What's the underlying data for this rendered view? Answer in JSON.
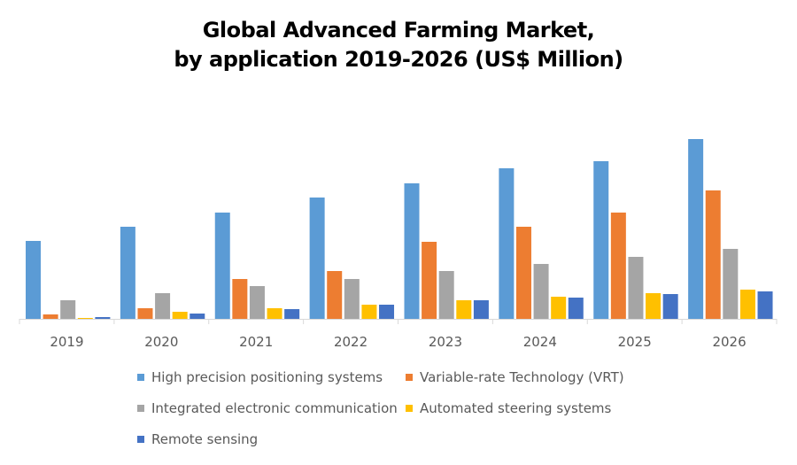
{
  "chart_data": {
    "type": "bar",
    "title_line1": "Global Advanced Farming Market,",
    "title_line2": "by application 2019-2026 (US$ Million)",
    "xlabel": "",
    "ylabel": "",
    "categories": [
      "2019",
      "2020",
      "2021",
      "2022",
      "2023",
      "2024",
      "2025",
      "2026"
    ],
    "ylim": [
      0,
      210
    ],
    "grid": false,
    "legend_position": "bottom",
    "series": [
      {
        "name": "High precision positioning systems",
        "color": "#5B9BD5",
        "values": [
          88,
          104,
          120,
          137,
          153,
          170,
          178,
          203
        ]
      },
      {
        "name": "Variable-rate Technology (VRT)",
        "color": "#ED7D31",
        "values": [
          5,
          12,
          45,
          54,
          87,
          104,
          120,
          145
        ]
      },
      {
        "name": "Integrated electronic communication",
        "color": "#A5A5A5",
        "values": [
          21,
          29,
          37,
          45,
          54,
          62,
          70,
          79
        ]
      },
      {
        "name": "Automated steering systems",
        "color": "#FFC000",
        "values": [
          1,
          8,
          12,
          16,
          21,
          25,
          29,
          33
        ]
      },
      {
        "name": "Remote sensing",
        "color": "#4472C4",
        "values": [
          2,
          6,
          11,
          16,
          21,
          24,
          28,
          31
        ]
      }
    ]
  }
}
